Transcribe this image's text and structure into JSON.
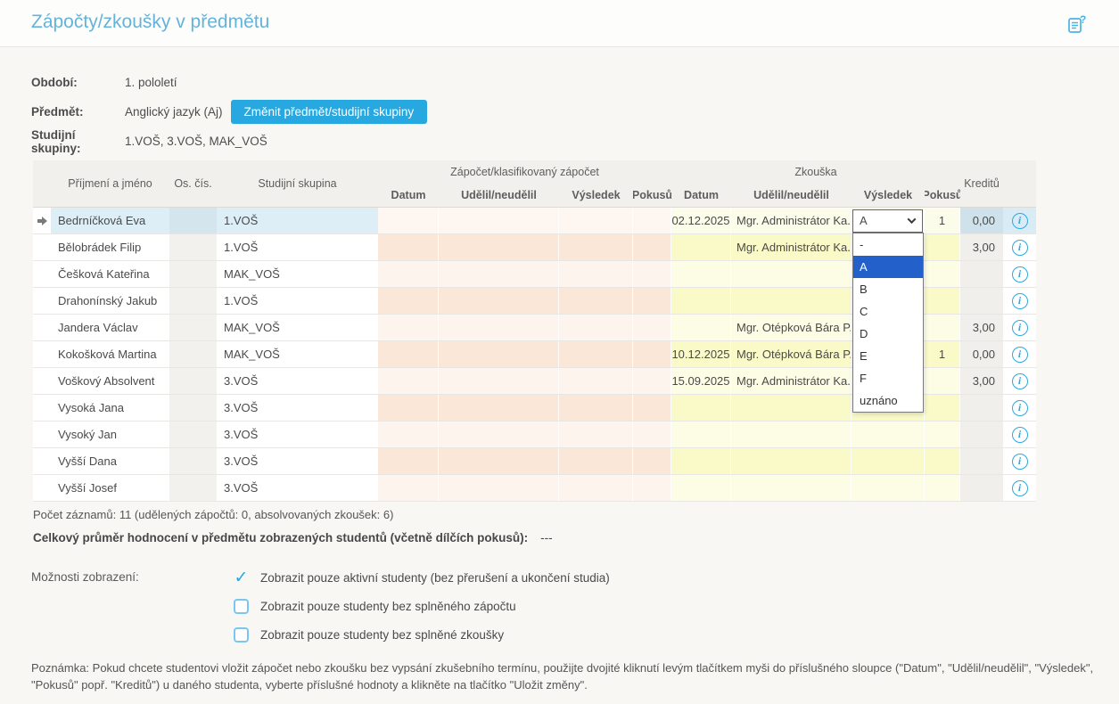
{
  "header": {
    "title": "Zápočty/zkoušky v předmětu"
  },
  "filters": {
    "obdobi_label": "Období:",
    "obdobi_value": "1. pololetí",
    "predmet_label": "Předmět:",
    "predmet_value": "Anglický jazyk (Aj)",
    "change_button": "Změnit předmět/studijní skupiny",
    "skupiny_label": "Studijní skupiny:",
    "skupiny_value": "1.VOŠ, 3.VOŠ, MAK_VOŠ"
  },
  "table": {
    "headers": {
      "name": "Příjmení a jméno",
      "os": "Os. čís.",
      "skupina": "Studijní skupina",
      "group_zapocet": "Zápočet/klasifikovaný zápočet",
      "group_zkouska": "Zkouška",
      "datum": "Datum",
      "udelil": "Udělil/neudělil",
      "vysledek": "Výsledek",
      "pokusu": "Pokusů",
      "kreditu": "Kreditů"
    },
    "rows": [
      {
        "name": "Bedrníčková Eva",
        "os": "",
        "skupina": "1.VOŠ",
        "selected": true,
        "z_datum": "",
        "z_udelil": "",
        "z_vysledek": "",
        "z_pokusu": "",
        "zk_datum": "02.12.2025",
        "zk_udelil": "Mgr. Administrátor Ka...",
        "zk_vysledek_select": "A",
        "zk_pokusu": "1",
        "kredity": "0,00"
      },
      {
        "name": "Bělobrádek Filip",
        "os": "",
        "skupina": "1.VOŠ",
        "zk_datum": "",
        "zk_udelil": "Mgr. Administrátor Ka...",
        "zk_vysledek": "",
        "zk_pokusu": "",
        "kredity": "3,00"
      },
      {
        "name": "Češková Kateřina",
        "os": "",
        "skupina": "MAK_VOŠ"
      },
      {
        "name": "Drahonínský Jakub",
        "os": "",
        "skupina": "1.VOŠ"
      },
      {
        "name": "Jandera Václav",
        "os": "",
        "skupina": "MAK_VOŠ",
        "zk_udelil": "Mgr. Otépková Bára P...",
        "kredity": "3,00"
      },
      {
        "name": "Kokošková Martina",
        "os": "",
        "skupina": "MAK_VOŠ",
        "zk_datum": "10.12.2025",
        "zk_udelil": "Mgr. Otépková Bára P...",
        "zk_pokusu": "1",
        "kredity": "0,00"
      },
      {
        "name": "Voškový Absolvent",
        "os": "",
        "skupina": "3.VOŠ",
        "zk_datum": "15.09.2025",
        "zk_udelil": "Mgr. Administrátor Ka...",
        "kredity": "3,00"
      },
      {
        "name": "Vysoká Jana",
        "os": "",
        "skupina": "3.VOŠ"
      },
      {
        "name": "Vysoký Jan",
        "os": "",
        "skupina": "3.VOŠ"
      },
      {
        "name": "Vyšší Dana",
        "os": "",
        "skupina": "3.VOŠ"
      },
      {
        "name": "Vyšší Josef",
        "os": "",
        "skupina": "3.VOŠ"
      }
    ],
    "dropdown": {
      "options": [
        "-",
        "A",
        "B",
        "C",
        "D",
        "E",
        "F",
        "uznáno"
      ],
      "highlighted": "A"
    }
  },
  "summary": {
    "records": "Počet záznamů: 11 (udělených zápočtů: 0, absolvovaných zkoušek: 6)",
    "average_label": "Celkový průměr hodnocení v předmětu zobrazených studentů (včetně dílčích pokusů):",
    "average_value": "---"
  },
  "display_options": {
    "label": "Možnosti zobrazení:",
    "items": [
      {
        "label": "Zobrazit pouze aktivní studenty (bez přerušení a ukončení studia)",
        "checked": true
      },
      {
        "label": "Zobrazit pouze studenty bez splněného zápočtu",
        "checked": false
      },
      {
        "label": "Zobrazit pouze studenty bez splněné zkoušky",
        "checked": false
      }
    ]
  },
  "note": "Poznámka: Pokud chcete studentovi vložit zápočet nebo zkoušku bez vypsání zkušebního termínu, použijte dvojité kliknutí levým tlačítkem myši do příslušného sloupce (\"Datum\", \"Udělil/neudělil\", \"Výsledek\", \"Pokusů\" popř. \"Kreditů\") u daného studenta, vyberte příslušné hodnoty a klikněte na tlačítko \"Uložit změny\".",
  "colors": {
    "accent_blue": "#28a8e0",
    "title_blue": "#64b3d8",
    "selected_row": "#ddeef7",
    "zapocet_cell_odd": "#fdf4ee",
    "zapocet_cell_even": "#fae7d8",
    "zkouska_cell_odd": "#fdfde6",
    "zkouska_cell_even": "#fafac8",
    "dropdown_highlight": "#2460c9"
  }
}
